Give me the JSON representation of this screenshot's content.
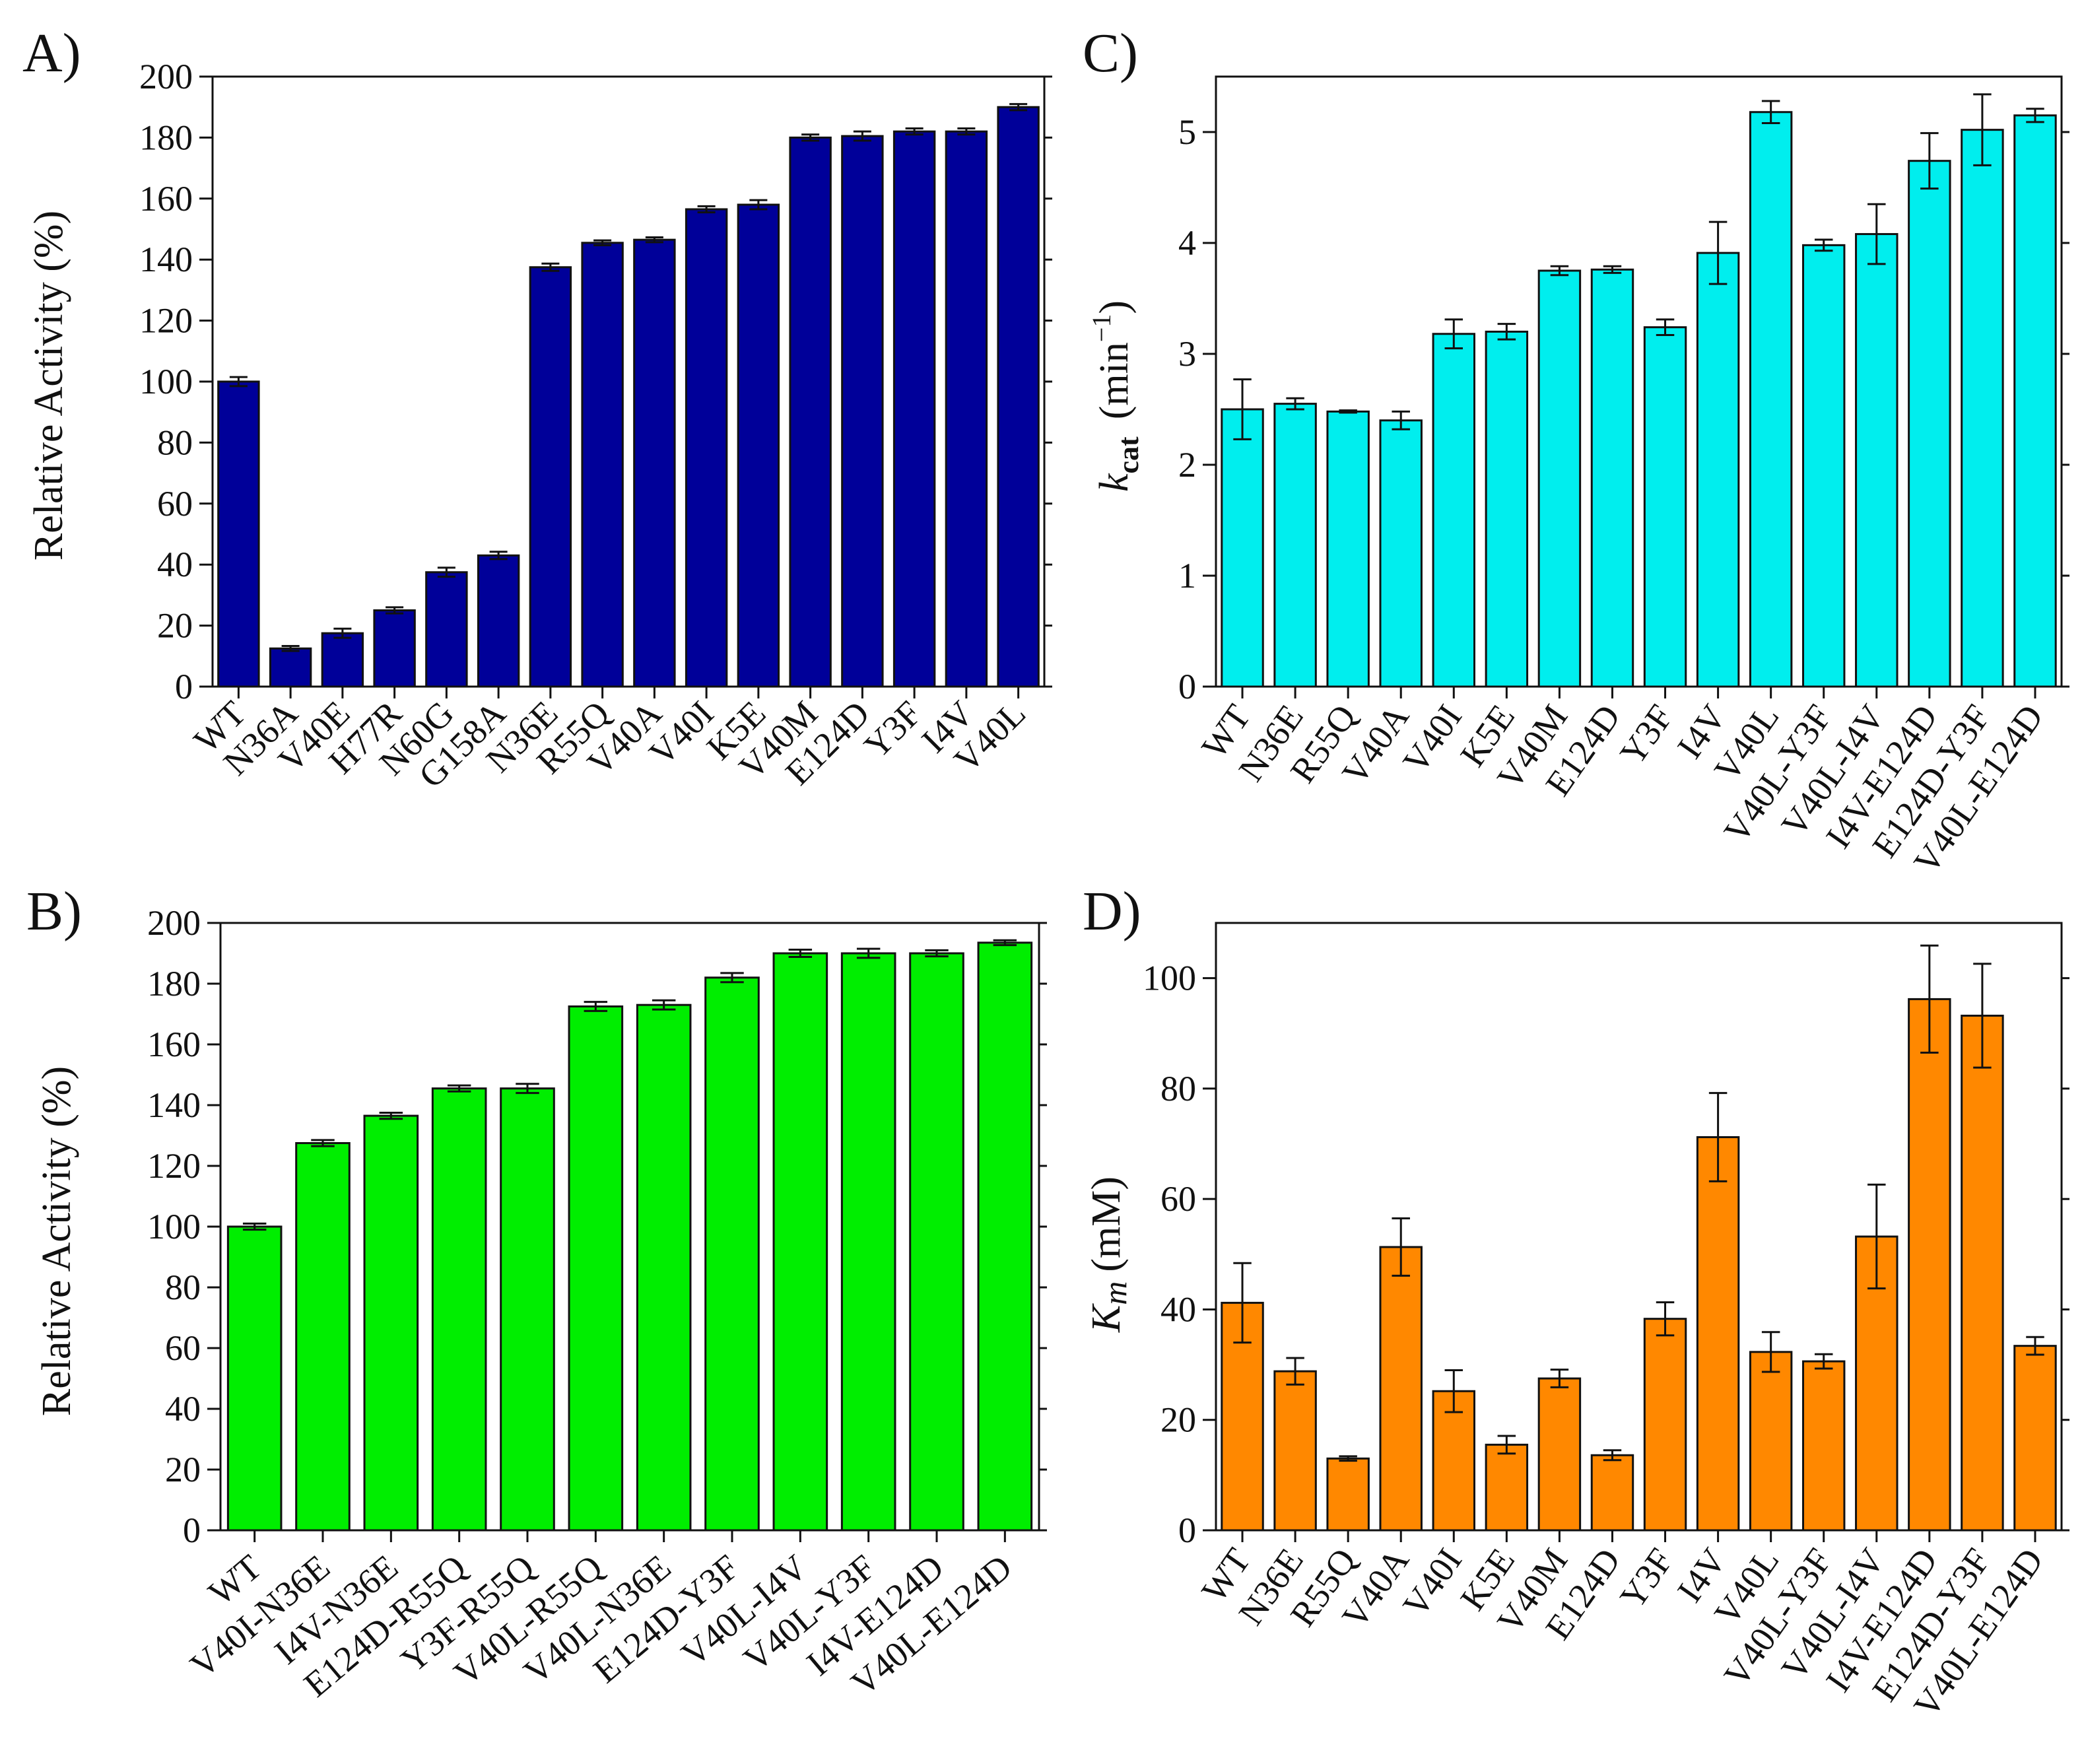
{
  "chart_data": [
    {
      "panel": "A)",
      "type": "bar",
      "ylabel": "Relative Activity (%)",
      "ylim": [
        0,
        200
      ],
      "yticks": [
        0,
        20,
        40,
        60,
        80,
        100,
        120,
        140,
        160,
        180,
        200
      ],
      "color": "#000099",
      "categories": [
        "WT",
        "N36A",
        "V40E",
        "H77R",
        "N60G",
        "G158A",
        "N36E",
        "R55Q",
        "V40A",
        "V40I",
        "K5E",
        "V40M",
        "E124D",
        "Y3F",
        "I4V",
        "V40L"
      ],
      "values": [
        100,
        12.5,
        17.5,
        25,
        37.5,
        43,
        137.5,
        145.5,
        146.5,
        156.5,
        158,
        180,
        180.5,
        182,
        182,
        190
      ],
      "errors": [
        1.5,
        0.8,
        1.5,
        1,
        1.5,
        1.2,
        1.2,
        0.8,
        0.8,
        1,
        1.5,
        1,
        1.5,
        1,
        1,
        1
      ]
    },
    {
      "panel": "B)",
      "type": "bar",
      "ylabel": "Relative Activity  (%)",
      "ylim": [
        0,
        200
      ],
      "yticks": [
        0,
        20,
        40,
        60,
        80,
        100,
        120,
        140,
        160,
        180,
        200
      ],
      "color": "#00ee00",
      "categories": [
        "WT",
        "V40I-N36E",
        "I4V-N36E",
        "E124D-R55Q",
        "Y3F-R55Q",
        "V40L-R55Q",
        "V40L-N36E",
        "E124D-Y3F",
        "V40L-I4V",
        "V40L-Y3F",
        "I4V-E124D",
        "V40L-E124D"
      ],
      "values": [
        100,
        127.5,
        136.5,
        145.5,
        145.5,
        172.5,
        173,
        182,
        190,
        190,
        190,
        193.5
      ],
      "errors": [
        1,
        1,
        1,
        1,
        1.5,
        1.5,
        1.5,
        1.5,
        1.2,
        1.5,
        1,
        0.8
      ]
    },
    {
      "panel": "C)",
      "type": "bar",
      "ylabel_k": "k",
      "ylabel_sub": "cat",
      "ylabel_units": "(min",
      "ylabel_sup": "−1",
      "ylabel_close": ")",
      "ylim": [
        0,
        5.5
      ],
      "yticks": [
        0,
        1,
        2,
        3,
        4,
        5
      ],
      "color": "#00eeee",
      "categories": [
        "WT",
        "N36E",
        "R55Q",
        "V40A",
        "V40I",
        "K5E",
        "V40M",
        "E124D",
        "Y3F",
        "I4V",
        "V40L",
        "V40L-Y3F",
        "V40L-I4V",
        "I4V-E124D",
        "E124D-Y3F",
        "V40L-E124D"
      ],
      "values": [
        2.5,
        2.55,
        2.48,
        2.4,
        3.18,
        3.2,
        3.75,
        3.76,
        3.24,
        3.91,
        5.18,
        3.98,
        4.08,
        4.74,
        5.02,
        5.15
      ],
      "errors": [
        0.27,
        0.05,
        0.01,
        0.08,
        0.13,
        0.07,
        0.04,
        0.03,
        0.07,
        0.28,
        0.1,
        0.05,
        0.27,
        0.25,
        0.32,
        0.06
      ]
    },
    {
      "panel": "D)",
      "type": "bar",
      "ylabel_k": "K",
      "ylabel_sub": "m",
      "ylabel_units": "(mM)",
      "ylim": [
        0,
        110
      ],
      "yticks": [
        0,
        20,
        40,
        60,
        80,
        100
      ],
      "color": "#ff8800",
      "categories": [
        "WT",
        "N36E",
        "R55Q",
        "V40A",
        "V40I",
        "K5E",
        "V40M",
        "E124D",
        "Y3F",
        "I4V",
        "V40L",
        "V40L-Y3F",
        "V40L-I4V",
        "I4V-E124D",
        "E124D-Y3F",
        "V40L-E124D"
      ],
      "values": [
        41.2,
        28.8,
        13,
        51.3,
        25.2,
        15.5,
        27.5,
        13.6,
        38.3,
        71.2,
        32.3,
        30.6,
        53.2,
        96.2,
        93.2,
        33.4
      ],
      "errors": [
        7.2,
        2.4,
        0.4,
        5.2,
        3.8,
        1.6,
        1.6,
        0.9,
        3,
        8,
        3.6,
        1.3,
        9.4,
        9.7,
        9.4,
        1.6
      ]
    }
  ]
}
